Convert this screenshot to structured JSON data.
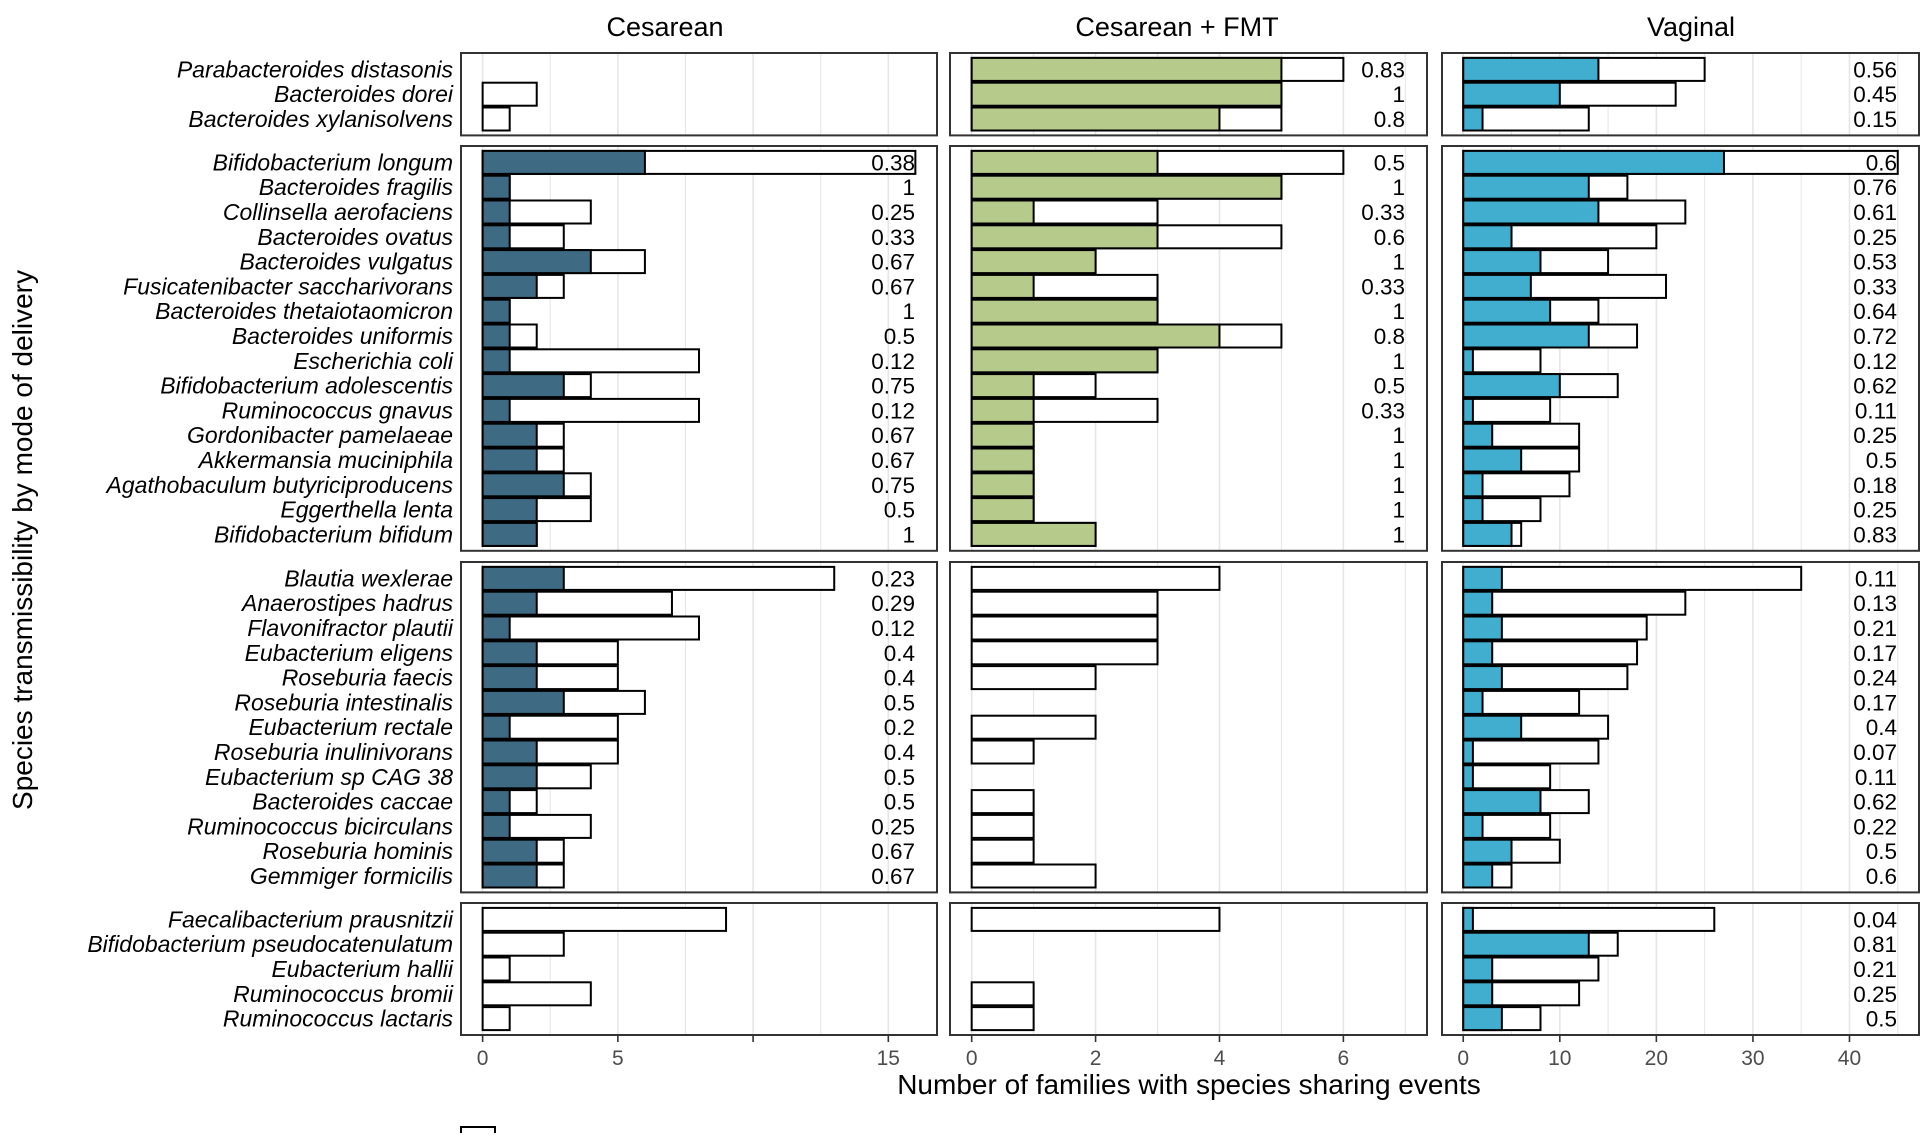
{
  "chart_data": {
    "type": "bar",
    "title": "",
    "xlabel": "Number of families with species sharing events",
    "ylabel": "Species transmissibility by mode of delivery",
    "legend": "bottom",
    "colors": {
      "Cesarean": "#3e6a83",
      "Cesarean + FMT": "#b6ca8b",
      "Vaginal": "#41aecf",
      "outline": "#000000",
      "frame": "#333333",
      "grid": "#e6e6e6"
    },
    "panels": [
      {
        "name": "Cesarean",
        "xlim": [
          -0.8,
          16.8
        ],
        "ticks": [
          0,
          5,
          10,
          15
        ],
        "tick_labels": [
          "0",
          "5",
          "",
          "15"
        ]
      },
      {
        "name": "Cesarean + FMT",
        "xlim": [
          -0.35,
          7.35
        ],
        "ticks": [
          0,
          2,
          4,
          6
        ],
        "tick_labels": [
          "0",
          "2",
          "4",
          "6"
        ]
      },
      {
        "name": "Vaginal",
        "xlim": [
          -2.2,
          47.2
        ],
        "ticks": [
          0,
          10,
          20,
          30,
          40
        ],
        "tick_labels": [
          "0",
          "10",
          "20",
          "30",
          "40"
        ]
      }
    ],
    "groups": [
      {
        "species": [
          "Parabacteroides distasonis",
          "Bacteroides dorei",
          "Bacteroides xylanisolvens"
        ],
        "series": {
          "Cesarean": {
            "total": [
              null,
              2,
              1
            ],
            "shared": [
              null,
              null,
              null
            ],
            "ratio": [
              "",
              "",
              ""
            ]
          },
          "Cesarean + FMT": {
            "total": [
              6,
              5,
              5
            ],
            "shared": [
              5,
              5,
              4
            ],
            "ratio": [
              "0.83",
              "1",
              "0.8"
            ]
          },
          "Vaginal": {
            "total": [
              25,
              22,
              13
            ],
            "shared": [
              14,
              10,
              2
            ],
            "ratio": [
              "0.56",
              "0.45",
              "0.15"
            ]
          }
        }
      },
      {
        "species": [
          "Bifidobacterium longum",
          "Bacteroides fragilis",
          "Collinsella aerofaciens",
          "Bacteroides ovatus",
          "Bacteroides vulgatus",
          "Fusicatenibacter saccharivorans",
          "Bacteroides thetaiotaomicron",
          "Bacteroides uniformis",
          "Escherichia coli",
          "Bifidobacterium adolescentis",
          "Ruminococcus gnavus",
          "Gordonibacter pamelaeae",
          "Akkermansia muciniphila",
          "Agathobaculum butyriciproducens",
          "Eggerthella lenta",
          "Bifidobacterium bifidum"
        ],
        "series": {
          "Cesarean": {
            "total": [
              16,
              1,
              4,
              3,
              6,
              3,
              1,
              2,
              8,
              4,
              8,
              3,
              3,
              4,
              4,
              2
            ],
            "shared": [
              6,
              1,
              1,
              1,
              4,
              2,
              1,
              1,
              1,
              3,
              1,
              2,
              2,
              3,
              2,
              2
            ],
            "ratio": [
              "0.38",
              "1",
              "0.25",
              "0.33",
              "0.67",
              "0.67",
              "1",
              "0.5",
              "0.12",
              "0.75",
              "0.12",
              "0.67",
              "0.67",
              "0.75",
              "0.5",
              "1"
            ]
          },
          "Cesarean + FMT": {
            "total": [
              6,
              5,
              3,
              5,
              2,
              3,
              3,
              5,
              3,
              2,
              3,
              1,
              1,
              1,
              1,
              2
            ],
            "shared": [
              3,
              5,
              1,
              3,
              2,
              1,
              3,
              4,
              3,
              1,
              1,
              1,
              1,
              1,
              1,
              2
            ],
            "ratio": [
              "0.5",
              "1",
              "0.33",
              "0.6",
              "1",
              "0.33",
              "1",
              "0.8",
              "1",
              "0.5",
              "0.33",
              "1",
              "1",
              "1",
              "1",
              "1"
            ]
          },
          "Vaginal": {
            "total": [
              45,
              17,
              23,
              20,
              15,
              21,
              14,
              18,
              8,
              16,
              9,
              12,
              12,
              11,
              8,
              6
            ],
            "shared": [
              27,
              13,
              14,
              5,
              8,
              7,
              9,
              13,
              1,
              10,
              1,
              3,
              6,
              2,
              2,
              5
            ],
            "ratio": [
              "0.6",
              "0.76",
              "0.61",
              "0.25",
              "0.53",
              "0.33",
              "0.64",
              "0.72",
              "0.12",
              "0.62",
              "0.11",
              "0.25",
              "0.5",
              "0.18",
              "0.25",
              "0.83"
            ]
          }
        }
      },
      {
        "species": [
          "Blautia wexlerae",
          "Anaerostipes hadrus",
          "Flavonifractor plautii",
          "Eubacterium eligens",
          "Roseburia faecis",
          "Roseburia intestinalis",
          "Eubacterium rectale",
          "Roseburia inulinivorans",
          "Eubacterium sp CAG 38",
          "Bacteroides caccae",
          "Ruminococcus bicirculans",
          "Roseburia hominis",
          "Gemmiger formicilis"
        ],
        "series": {
          "Cesarean": {
            "total": [
              13,
              7,
              8,
              5,
              5,
              6,
              5,
              5,
              4,
              2,
              4,
              3,
              3
            ],
            "shared": [
              3,
              2,
              1,
              2,
              2,
              3,
              1,
              2,
              2,
              1,
              1,
              2,
              2
            ],
            "ratio": [
              "0.23",
              "0.29",
              "0.12",
              "0.4",
              "0.4",
              "0.5",
              "0.2",
              "0.4",
              "0.5",
              "0.5",
              "0.25",
              "0.67",
              "0.67"
            ]
          },
          "Cesarean + FMT": {
            "total": [
              4,
              3,
              3,
              3,
              2,
              null,
              2,
              1,
              null,
              1,
              1,
              1,
              2
            ],
            "shared": [
              null,
              null,
              null,
              null,
              null,
              null,
              null,
              null,
              null,
              null,
              null,
              null,
              null
            ],
            "ratio": [
              "",
              "",
              "",
              "",
              "",
              "",
              "",
              "",
              "",
              "",
              "",
              "",
              ""
            ]
          },
          "Vaginal": {
            "total": [
              35,
              23,
              19,
              18,
              17,
              12,
              15,
              14,
              9,
              13,
              9,
              10,
              5
            ],
            "shared": [
              4,
              3,
              4,
              3,
              4,
              2,
              6,
              1,
              1,
              8,
              2,
              5,
              3
            ],
            "ratio": [
              "0.11",
              "0.13",
              "0.21",
              "0.17",
              "0.24",
              "0.17",
              "0.4",
              "0.07",
              "0.11",
              "0.62",
              "0.22",
              "0.5",
              "0.6"
            ]
          }
        }
      },
      {
        "species": [
          "Faecalibacterium prausnitzii",
          "Bifidobacterium pseudocatenulatum",
          "Eubacterium hallii",
          "Ruminococcus bromii",
          "Ruminococcus lactaris"
        ],
        "series": {
          "Cesarean": {
            "total": [
              9,
              3,
              1,
              4,
              1
            ],
            "shared": [
              null,
              null,
              null,
              null,
              null
            ],
            "ratio": [
              "",
              "",
              "",
              "",
              ""
            ]
          },
          "Cesarean + FMT": {
            "total": [
              4,
              null,
              null,
              1,
              1
            ],
            "shared": [
              null,
              null,
              null,
              null,
              null
            ],
            "ratio": [
              "",
              "",
              "",
              "",
              ""
            ]
          },
          "Vaginal": {
            "total": [
              26,
              16,
              14,
              12,
              8
            ],
            "shared": [
              1,
              13,
              3,
              3,
              4
            ],
            "ratio": [
              "0.04",
              "0.81",
              "0.21",
              "0.25",
              "0.5"
            ]
          }
        }
      }
    ]
  }
}
